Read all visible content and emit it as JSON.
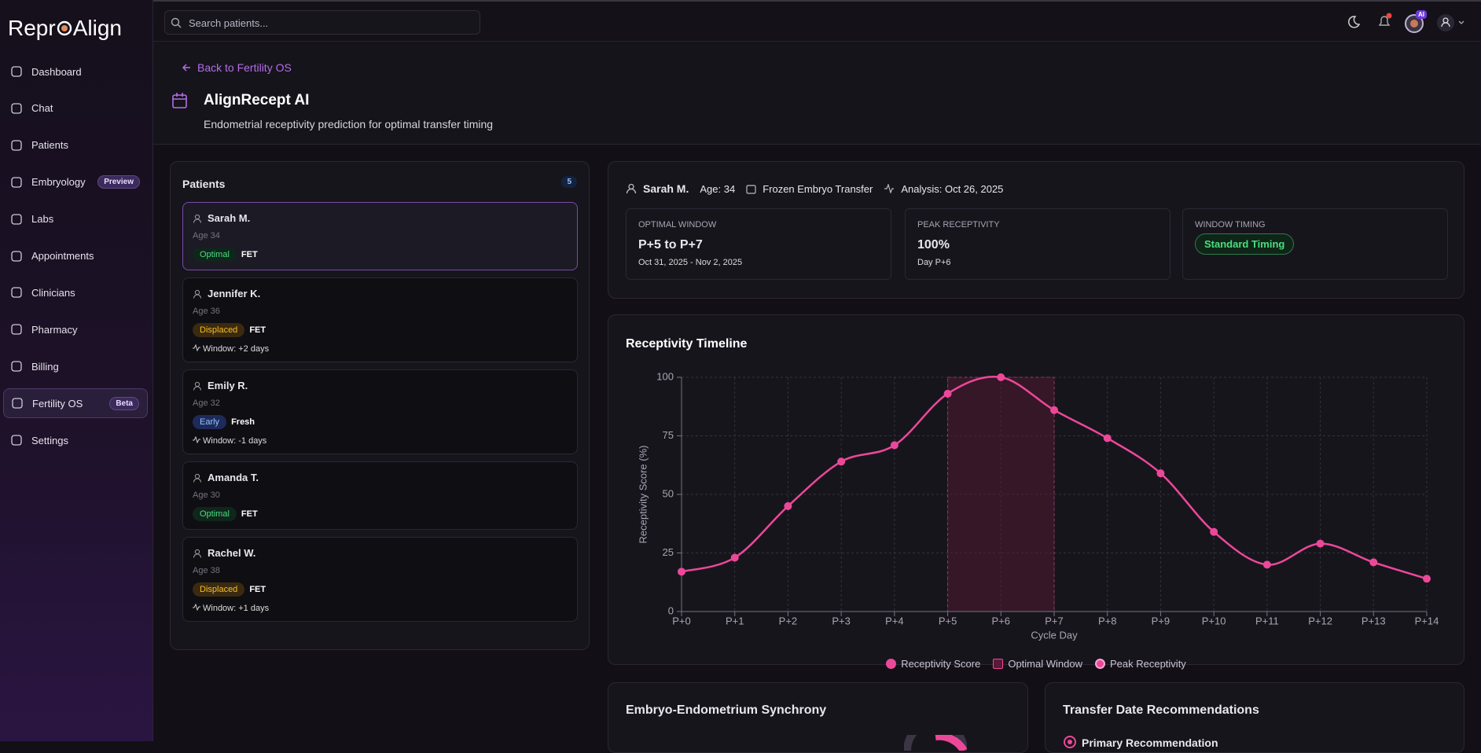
{
  "brand": {
    "left": "Repr",
    "right": "Align"
  },
  "search_placeholder": "Search patients...",
  "ai_badge": "AI",
  "nav": [
    {
      "label": "Dashboard"
    },
    {
      "label": "Chat"
    },
    {
      "label": "Patients"
    },
    {
      "label": "Embryology",
      "badge": "Preview"
    },
    {
      "label": "Labs"
    },
    {
      "label": "Appointments"
    },
    {
      "label": "Clinicians"
    },
    {
      "label": "Pharmacy"
    },
    {
      "label": "Billing"
    },
    {
      "label": "Fertility OS",
      "badge": "Beta",
      "active": true
    },
    {
      "label": "Settings"
    }
  ],
  "header": {
    "back": "Back to Fertility OS",
    "title": "AlignRecept AI",
    "subtitle": "Endometrial receptivity prediction for optimal transfer timing"
  },
  "patients": {
    "title": "Patients",
    "count": 5,
    "list": [
      {
        "name": "Sarah M.",
        "age": "Age 34",
        "status": "Optimal",
        "type": "FET",
        "selected": true
      },
      {
        "name": "Jennifer K.",
        "age": "Age 36",
        "status": "Displaced",
        "type": "FET",
        "window": "Window: +2 days"
      },
      {
        "name": "Emily R.",
        "age": "Age 32",
        "status": "Early",
        "type": "Fresh",
        "window": "Window: -1 days"
      },
      {
        "name": "Amanda T.",
        "age": "Age 30",
        "status": "Optimal",
        "type": "FET"
      },
      {
        "name": "Rachel W.",
        "age": "Age 38",
        "status": "Displaced",
        "type": "FET",
        "window": "Window: +1 days"
      }
    ]
  },
  "summary": {
    "name": "Sarah M.",
    "age": "Age: 34",
    "transfer": "Frozen Embryo Transfer",
    "analysis": "Analysis: Oct 26, 2025",
    "cards": [
      {
        "label": "OPTIMAL WINDOW",
        "value": "P+5 to P+7",
        "note": "Oct 31, 2025 - Nov 2, 2025"
      },
      {
        "label": "PEAK RECEPTIVITY",
        "value": "100%",
        "note": "Day P+6"
      },
      {
        "label": "WINDOW TIMING",
        "badge": "Standard Timing"
      }
    ]
  },
  "chart_data": {
    "type": "line",
    "title": "Receptivity Timeline",
    "x_label": "Cycle Day",
    "y_label": "Receptivity Score (%)",
    "categories": [
      "P+0",
      "P+1",
      "P+2",
      "P+3",
      "P+4",
      "P+5",
      "P+6",
      "P+7",
      "P+8",
      "P+9",
      "P+10",
      "P+11",
      "P+12",
      "P+13",
      "P+14"
    ],
    "series": [
      {
        "name": "Receptivity Score",
        "color": "#ec4899",
        "values": [
          17,
          23,
          45,
          64,
          71,
          93,
          100,
          86,
          74,
          59,
          34,
          20,
          29,
          21,
          14
        ]
      }
    ],
    "window": {
      "name": "Optimal Window",
      "from": "P+5",
      "to": "P+7",
      "color": "#5a1a36"
    },
    "peak": {
      "name": "Peak Receptivity",
      "category": "P+6"
    },
    "ylim": [
      0,
      100
    ],
    "yticks": [
      0,
      25,
      50,
      75,
      100
    ],
    "grid": true
  },
  "sections": {
    "synchrony": "Embryo-Endometrium Synchrony",
    "transfer": "Transfer Date Recommendations",
    "primary": "Primary Recommendation"
  }
}
